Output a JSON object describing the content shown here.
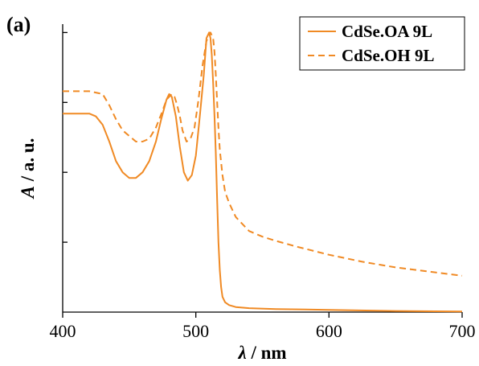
{
  "chart_data": {
    "type": "line",
    "panel_label": "(a)",
    "xlabel_symbol": "λ",
    "xlabel_unit": " / nm",
    "ylabel_symbol": "A",
    "ylabel_unit": " / a. u.",
    "xlim": [
      400,
      700
    ],
    "ylim": [
      0,
      1.03
    ],
    "x_ticks": [
      400,
      500,
      600,
      700
    ],
    "x_tick_labels": [
      "400",
      "500",
      "600",
      "700"
    ],
    "y_ticks_unlabeled": [
      0.25,
      0.5,
      0.75,
      1.0
    ],
    "grid": false,
    "legend_position": "top-right",
    "color": "#F08A24",
    "series": [
      {
        "name": "CdSe.OA 9L",
        "style": "solid",
        "x": [
          400,
          410,
          420,
          425,
          430,
          435,
          440,
          445,
          450,
          455,
          460,
          465,
          470,
          474,
          478,
          480,
          482,
          485,
          488,
          491,
          494,
          497,
          500,
          503,
          506,
          508,
          510,
          511,
          512,
          513,
          514,
          515,
          516,
          517,
          518,
          519,
          520,
          522,
          525,
          530,
          540,
          560,
          600,
          650,
          700
        ],
        "y": [
          0.71,
          0.71,
          0.71,
          0.7,
          0.67,
          0.61,
          0.54,
          0.5,
          0.48,
          0.48,
          0.5,
          0.54,
          0.61,
          0.69,
          0.76,
          0.78,
          0.77,
          0.7,
          0.59,
          0.5,
          0.47,
          0.49,
          0.56,
          0.7,
          0.85,
          0.98,
          1.0,
          0.98,
          0.92,
          0.82,
          0.7,
          0.57,
          0.4,
          0.25,
          0.15,
          0.09,
          0.055,
          0.035,
          0.025,
          0.018,
          0.014,
          0.011,
          0.008,
          0.004,
          0.002
        ]
      },
      {
        "name": "CdSe.OH 9L",
        "style": "dashed",
        "x": [
          400,
          410,
          420,
          430,
          435,
          440,
          445,
          450,
          455,
          460,
          465,
          470,
          475,
          478,
          482,
          484,
          486,
          488,
          490,
          493,
          496,
          499,
          502,
          505,
          508,
          511,
          513,
          514,
          515,
          516,
          517,
          518,
          520,
          522,
          525,
          530,
          540,
          550,
          560,
          575,
          600,
          625,
          650,
          675,
          700
        ],
        "y": [
          0.79,
          0.79,
          0.79,
          0.78,
          0.74,
          0.69,
          0.65,
          0.63,
          0.61,
          0.61,
          0.62,
          0.66,
          0.72,
          0.76,
          0.78,
          0.77,
          0.74,
          0.7,
          0.65,
          0.61,
          0.62,
          0.66,
          0.76,
          0.88,
          0.97,
          1.0,
          0.98,
          0.93,
          0.85,
          0.75,
          0.66,
          0.58,
          0.49,
          0.43,
          0.39,
          0.34,
          0.29,
          0.27,
          0.255,
          0.235,
          0.205,
          0.18,
          0.16,
          0.145,
          0.13
        ]
      }
    ]
  }
}
